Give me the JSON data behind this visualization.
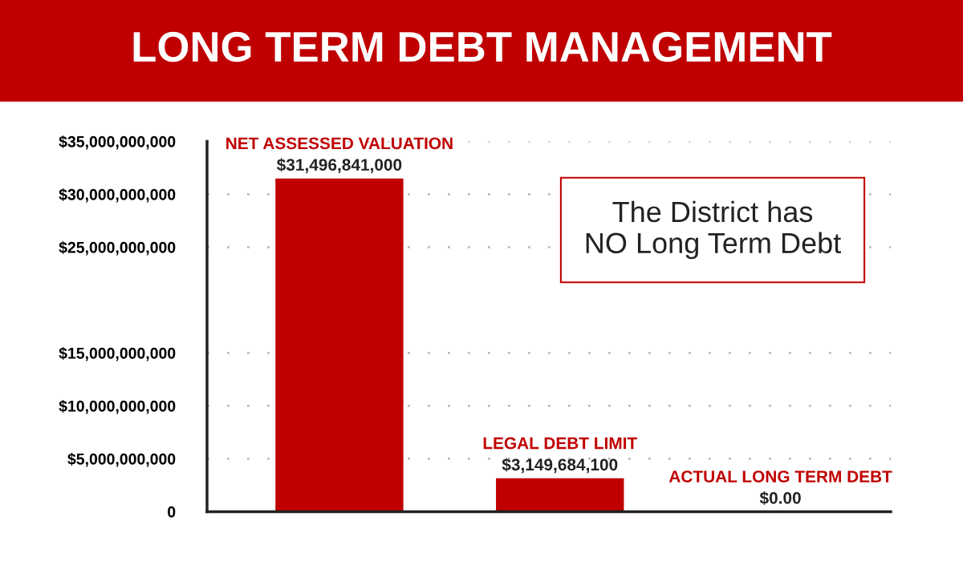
{
  "chart_data": {
    "type": "bar",
    "title": "LONG TERM DEBT MANAGEMENT",
    "categories": [
      "NET ASSESSED VALUATION",
      "LEGAL DEBT LIMIT",
      "ACTUAL LONG TERM DEBT"
    ],
    "values": [
      31496841000,
      3149684100,
      0
    ],
    "value_labels": [
      "$31,496,841,000",
      "$3,149,684,100",
      "$0.00"
    ],
    "color": "#c00000",
    "ylim": [
      0,
      35000000000
    ],
    "yticks": [
      {
        "value": 0,
        "label": "0"
      },
      {
        "value": 5000000000,
        "label": "$5,000,000,000"
      },
      {
        "value": 10000000000,
        "label": "$10,000,000,000"
      },
      {
        "value": 15000000000,
        "label": "$15,000,000,000"
      },
      {
        "value": 25000000000,
        "label": "$25,000,000,000"
      },
      {
        "value": 30000000000,
        "label": "$30,000,000,000"
      },
      {
        "value": 35000000000,
        "label": "$35,000,000,000"
      }
    ],
    "grid": "y",
    "annotations": [
      "The District has\nNO Long Term Debt"
    ]
  }
}
